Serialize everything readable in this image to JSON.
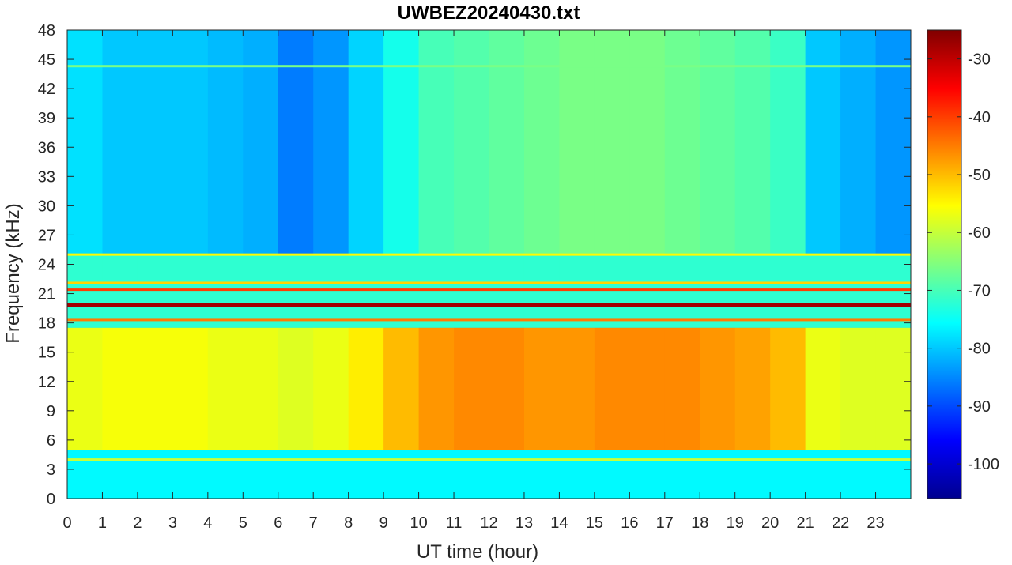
{
  "chart_data": {
    "type": "heatmap",
    "title": "UWBEZ20240430.txt",
    "xlabel": "UT time (hour)",
    "ylabel": "Frequency (kHz)",
    "xlim": [
      0,
      24
    ],
    "ylim": [
      0,
      48
    ],
    "x_ticks": [
      0,
      1,
      2,
      3,
      4,
      5,
      6,
      7,
      8,
      9,
      10,
      11,
      12,
      13,
      14,
      15,
      16,
      17,
      18,
      19,
      20,
      21,
      22,
      23
    ],
    "y_ticks": [
      0,
      3,
      6,
      9,
      12,
      15,
      18,
      21,
      24,
      27,
      30,
      33,
      36,
      39,
      42,
      45,
      48
    ],
    "colorbar": {
      "range": [
        -106,
        -25
      ],
      "ticks": [
        -30,
        -40,
        -50,
        -60,
        -70,
        -80,
        -90,
        -100
      ],
      "colormap": "jet"
    },
    "regions": {
      "background_dB": -72,
      "upper_band_dB_by_hour": [
        -78,
        -80,
        -80,
        -80,
        -81,
        -82,
        -86,
        -84,
        -79,
        -74,
        -70,
        -69,
        -68,
        -67,
        -66,
        -66,
        -66,
        -67,
        -68,
        -69,
        -71,
        -80,
        -82,
        -84
      ],
      "mid_band_dB_by_hour": [
        -57,
        -56,
        -56,
        -56,
        -57,
        -57,
        -58,
        -57,
        -54,
        -50,
        -47,
        -46,
        -46,
        -47,
        -47,
        -46,
        -46,
        -46,
        -47,
        -48,
        -50,
        -57,
        -58,
        -58
      ],
      "low_band_dB": -76
    },
    "lines_kHz": [
      {
        "freq": 19.8,
        "level_dB": -28
      },
      {
        "freq": 21.4,
        "level_dB": -40
      },
      {
        "freq": 18.3,
        "level_dB": -45
      },
      {
        "freq": 22.1,
        "level_dB": -52
      },
      {
        "freq": 25.0,
        "level_dB": -55
      },
      {
        "freq": 4.0,
        "level_dB": -60
      },
      {
        "freq": 44.3,
        "level_dB": -66
      }
    ]
  }
}
